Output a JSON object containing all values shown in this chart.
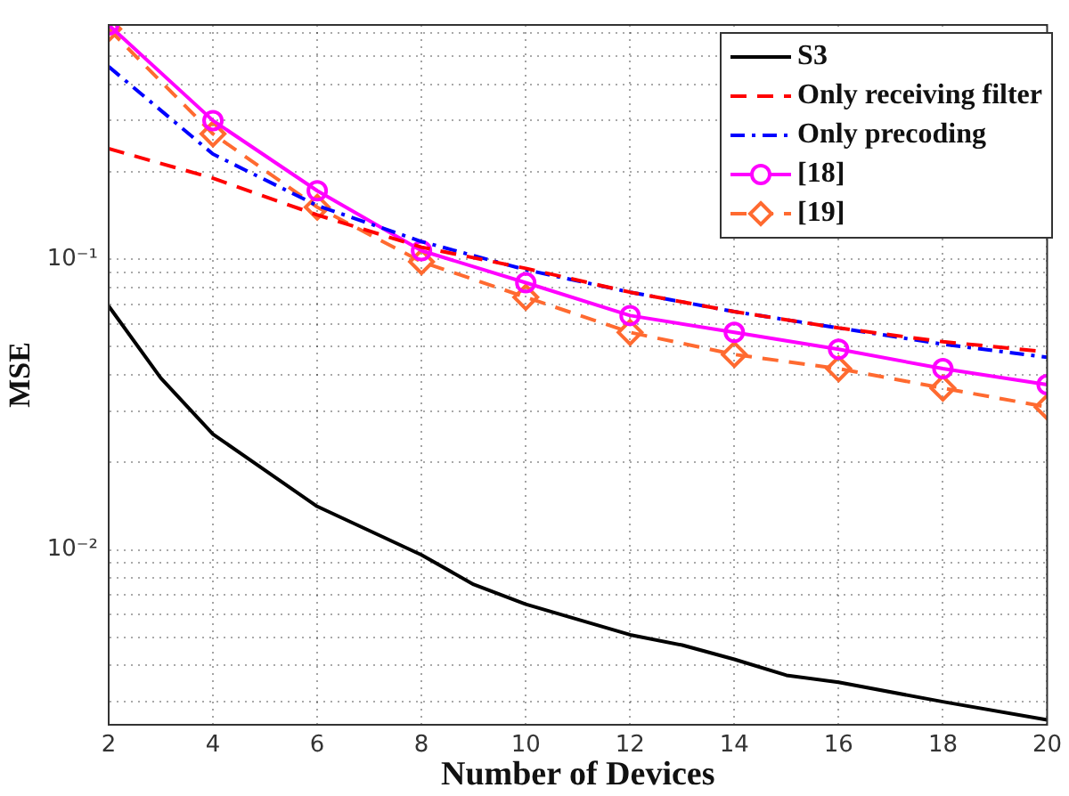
{
  "chart_data": {
    "type": "line",
    "xlabel": "Number of Devices",
    "ylabel": "MSE",
    "x": [
      2,
      4,
      6,
      8,
      10,
      12,
      14,
      16,
      18,
      20
    ],
    "xlim": [
      2,
      20
    ],
    "xticks": [
      2,
      4,
      6,
      8,
      10,
      12,
      14,
      16,
      18,
      20
    ],
    "ylim": [
      0.0025,
      0.64
    ],
    "yticks": [
      {
        "value": 0.003,
        "label": null
      },
      {
        "value": 0.004,
        "label": null
      },
      {
        "value": 0.005,
        "label": null
      },
      {
        "value": 0.006,
        "label": null
      },
      {
        "value": 0.007,
        "label": null
      },
      {
        "value": 0.008,
        "label": null
      },
      {
        "value": 0.009,
        "label": null
      },
      {
        "value": 0.01,
        "label": "10⁻²"
      },
      {
        "value": 0.02,
        "label": null
      },
      {
        "value": 0.03,
        "label": null
      },
      {
        "value": 0.04,
        "label": null
      },
      {
        "value": 0.05,
        "label": null
      },
      {
        "value": 0.06,
        "label": null
      },
      {
        "value": 0.07,
        "label": null
      },
      {
        "value": 0.08,
        "label": null
      },
      {
        "value": 0.09,
        "label": null
      },
      {
        "value": 0.1,
        "label": "10⁻¹"
      },
      {
        "value": 0.2,
        "label": null
      },
      {
        "value": 0.3,
        "label": null
      },
      {
        "value": 0.4,
        "label": null
      },
      {
        "value": 0.5,
        "label": null
      },
      {
        "value": 0.6,
        "label": null
      }
    ],
    "log": "y",
    "grid": true,
    "legend": "top right",
    "series": [
      {
        "name": "S3",
        "color": "#000000",
        "line_style": "solid",
        "marker": "none",
        "x": [
          2,
          3,
          4,
          6,
          8,
          9,
          10,
          12,
          13,
          14,
          15,
          16,
          18,
          20
        ],
        "values": [
          0.069,
          0.039,
          0.025,
          0.0141,
          0.0096,
          0.0076,
          0.0065,
          0.0051,
          0.0047,
          0.0042,
          0.0037,
          0.0035,
          0.003,
          0.0026
        ]
      },
      {
        "name": "Only receiving filter",
        "color": "#ff0000",
        "line_style": "dashed",
        "marker": "none",
        "values": [
          0.24,
          0.19,
          0.142,
          0.11,
          0.093,
          0.077,
          0.066,
          0.058,
          0.052,
          0.048
        ]
      },
      {
        "name": "Only precoding",
        "color": "#0000ff",
        "line_style": "dashdot",
        "marker": "none",
        "values": [
          0.46,
          0.23,
          0.153,
          0.115,
          0.092,
          0.077,
          0.066,
          0.058,
          0.051,
          0.046
        ]
      },
      {
        "name": "[18]",
        "color": "#ff00ff",
        "line_style": "solid",
        "marker": "circle",
        "values": [
          0.64,
          0.3,
          0.172,
          0.107,
          0.083,
          0.064,
          0.056,
          0.049,
          0.042,
          0.037
        ]
      },
      {
        "name": "[19]",
        "color": "#ff6a30",
        "line_style": "dashed",
        "marker": "diamond",
        "values": [
          0.62,
          0.27,
          0.151,
          0.098,
          0.074,
          0.056,
          0.047,
          0.042,
          0.036,
          0.031
        ]
      }
    ]
  }
}
